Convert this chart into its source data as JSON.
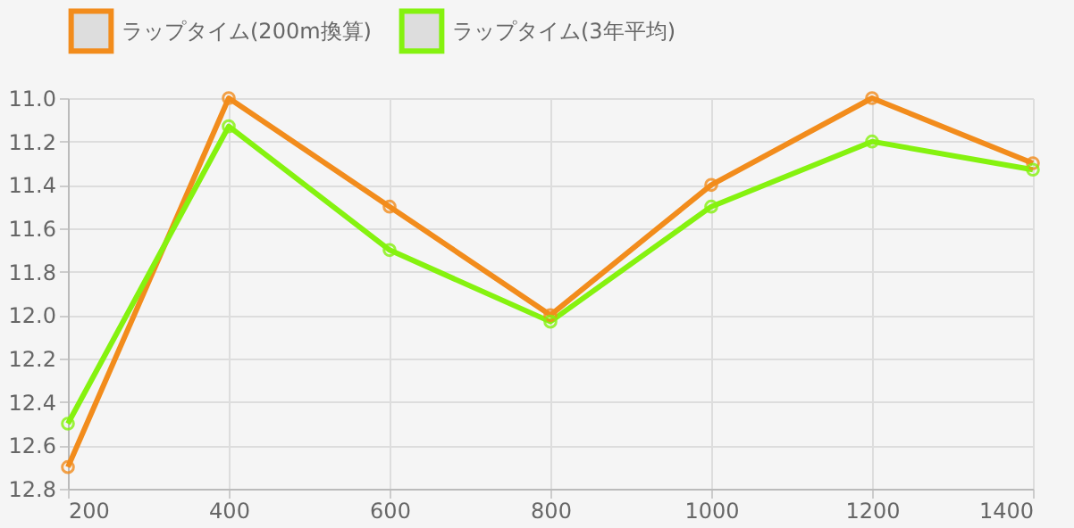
{
  "chart_data": {
    "type": "line",
    "x": [
      200,
      400,
      600,
      800,
      1000,
      1200,
      1400
    ],
    "series": [
      {
        "name": "ラップタイム(200m換算)",
        "color": "#f28c1c",
        "values": [
          12.7,
          11.0,
          11.5,
          12.0,
          11.4,
          11.0,
          11.3
        ]
      },
      {
        "name": "ラップタイム(3年平均)",
        "color": "#85f20f",
        "values": [
          12.5,
          11.13,
          11.7,
          12.03,
          11.5,
          11.2,
          11.33
        ]
      }
    ],
    "xlim": [
      200,
      1400
    ],
    "xticks": [
      200,
      400,
      600,
      800,
      1000,
      1200,
      1400
    ],
    "ylim": [
      12.8,
      11.0
    ],
    "yticks": [
      {
        "value": 11.0,
        "label": "11.0"
      },
      {
        "value": 11.2,
        "label": "11.2"
      },
      {
        "value": 11.4,
        "label": "11.4"
      },
      {
        "value": 11.6,
        "label": "11.6"
      },
      {
        "value": 11.8,
        "label": "11.8"
      },
      {
        "value": 12.0,
        "label": "12.0"
      },
      {
        "value": 12.2,
        "label": "12.2"
      },
      {
        "value": 12.4,
        "label": "12.4"
      },
      {
        "value": 12.6,
        "label": "12.6"
      },
      {
        "value": 12.8,
        "label": "12.8"
      }
    ],
    "grid": true,
    "legend": "top",
    "marker": "circle",
    "line_style": "solid"
  }
}
